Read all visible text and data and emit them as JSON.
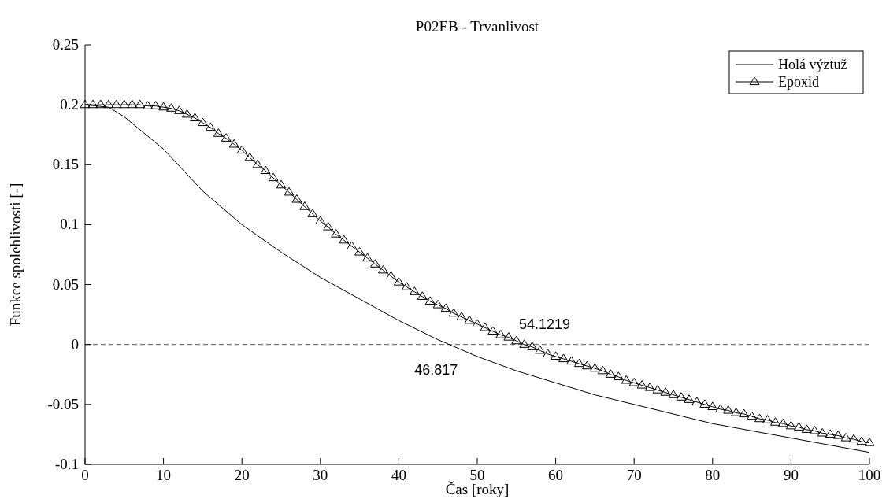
{
  "chart_data": {
    "type": "line",
    "title": "P02EB - Trvanlivost",
    "xlabel": "Čas [roky]",
    "ylabel": "Funkce spolehlivosti [-]",
    "xlim": [
      0,
      100
    ],
    "xticks": [
      0,
      10,
      20,
      30,
      40,
      50,
      60,
      70,
      80,
      90,
      100
    ],
    "ylim": [
      -0.1,
      0.25
    ],
    "yticks": [
      -0.1,
      -0.05,
      0,
      0.05,
      0.1,
      0.15,
      0.2,
      0.25
    ],
    "legend": "top right",
    "grid": false,
    "line_style": "solid",
    "series": [
      {
        "name": "Holá výztuž",
        "color": "#000000",
        "marker": "none",
        "x": [
          0,
          3,
          5,
          10,
          15,
          20,
          25,
          30,
          35,
          40,
          45,
          50,
          55,
          60,
          65,
          70,
          75,
          80,
          85,
          90,
          95,
          100
        ],
        "values": [
          0.2,
          0.198,
          0.19,
          0.163,
          0.128,
          0.1,
          0.077,
          0.056,
          0.038,
          0.02,
          0.004,
          -0.01,
          -0.022,
          -0.032,
          -0.042,
          -0.05,
          -0.058,
          -0.066,
          -0.072,
          -0.078,
          -0.084,
          -0.09
        ]
      },
      {
        "name": "Epoxid",
        "color": "#000000",
        "marker": "triangle",
        "x": [
          0,
          1,
          2,
          3,
          4,
          5,
          6,
          7,
          8,
          9,
          10,
          11,
          12,
          13,
          14,
          15,
          16,
          17,
          18,
          19,
          20,
          21,
          22,
          23,
          24,
          25,
          26,
          27,
          28,
          29,
          30,
          31,
          32,
          33,
          34,
          35,
          36,
          37,
          38,
          39,
          40,
          41,
          42,
          43,
          44,
          45,
          46,
          47,
          48,
          49,
          50,
          51,
          52,
          53,
          54,
          55,
          56,
          57,
          58,
          59,
          60,
          61,
          62,
          63,
          64,
          65,
          66,
          67,
          68,
          69,
          70,
          71,
          72,
          73,
          74,
          75,
          76,
          77,
          78,
          79,
          80,
          81,
          82,
          83,
          84,
          85,
          86,
          87,
          88,
          89,
          90,
          91,
          92,
          93,
          94,
          95,
          96,
          97,
          98,
          99,
          100
        ],
        "values": [
          0.2,
          0.2,
          0.2,
          0.2,
          0.2,
          0.2,
          0.2,
          0.2,
          0.199,
          0.199,
          0.198,
          0.197,
          0.195,
          0.192,
          0.189,
          0.185,
          0.181,
          0.176,
          0.172,
          0.167,
          0.162,
          0.156,
          0.15,
          0.145,
          0.139,
          0.133,
          0.127,
          0.121,
          0.115,
          0.109,
          0.103,
          0.098,
          0.092,
          0.087,
          0.082,
          0.077,
          0.072,
          0.067,
          0.062,
          0.057,
          0.052,
          0.048,
          0.044,
          0.04,
          0.036,
          0.033,
          0.03,
          0.026,
          0.023,
          0.02,
          0.017,
          0.014,
          0.011,
          0.008,
          0.006,
          0.003,
          0.0,
          -0.002,
          -0.005,
          -0.008,
          -0.01,
          -0.012,
          -0.014,
          -0.016,
          -0.018,
          -0.02,
          -0.022,
          -0.025,
          -0.027,
          -0.03,
          -0.032,
          -0.034,
          -0.036,
          -0.038,
          -0.04,
          -0.042,
          -0.044,
          -0.046,
          -0.048,
          -0.05,
          -0.052,
          -0.054,
          -0.055,
          -0.057,
          -0.058,
          -0.06,
          -0.062,
          -0.063,
          -0.065,
          -0.066,
          -0.068,
          -0.069,
          -0.071,
          -0.072,
          -0.074,
          -0.075,
          -0.076,
          -0.078,
          -0.079,
          -0.081,
          -0.082
        ]
      }
    ],
    "ref_lines": [
      {
        "axis": "y",
        "value": 0,
        "color": "#555555",
        "line_style": "dashed"
      }
    ],
    "annotations": [
      {
        "text": "54.1219",
        "x": 54.1219,
        "y": 0
      },
      {
        "text": "46.817",
        "x": 46.817,
        "y": 0
      }
    ]
  }
}
